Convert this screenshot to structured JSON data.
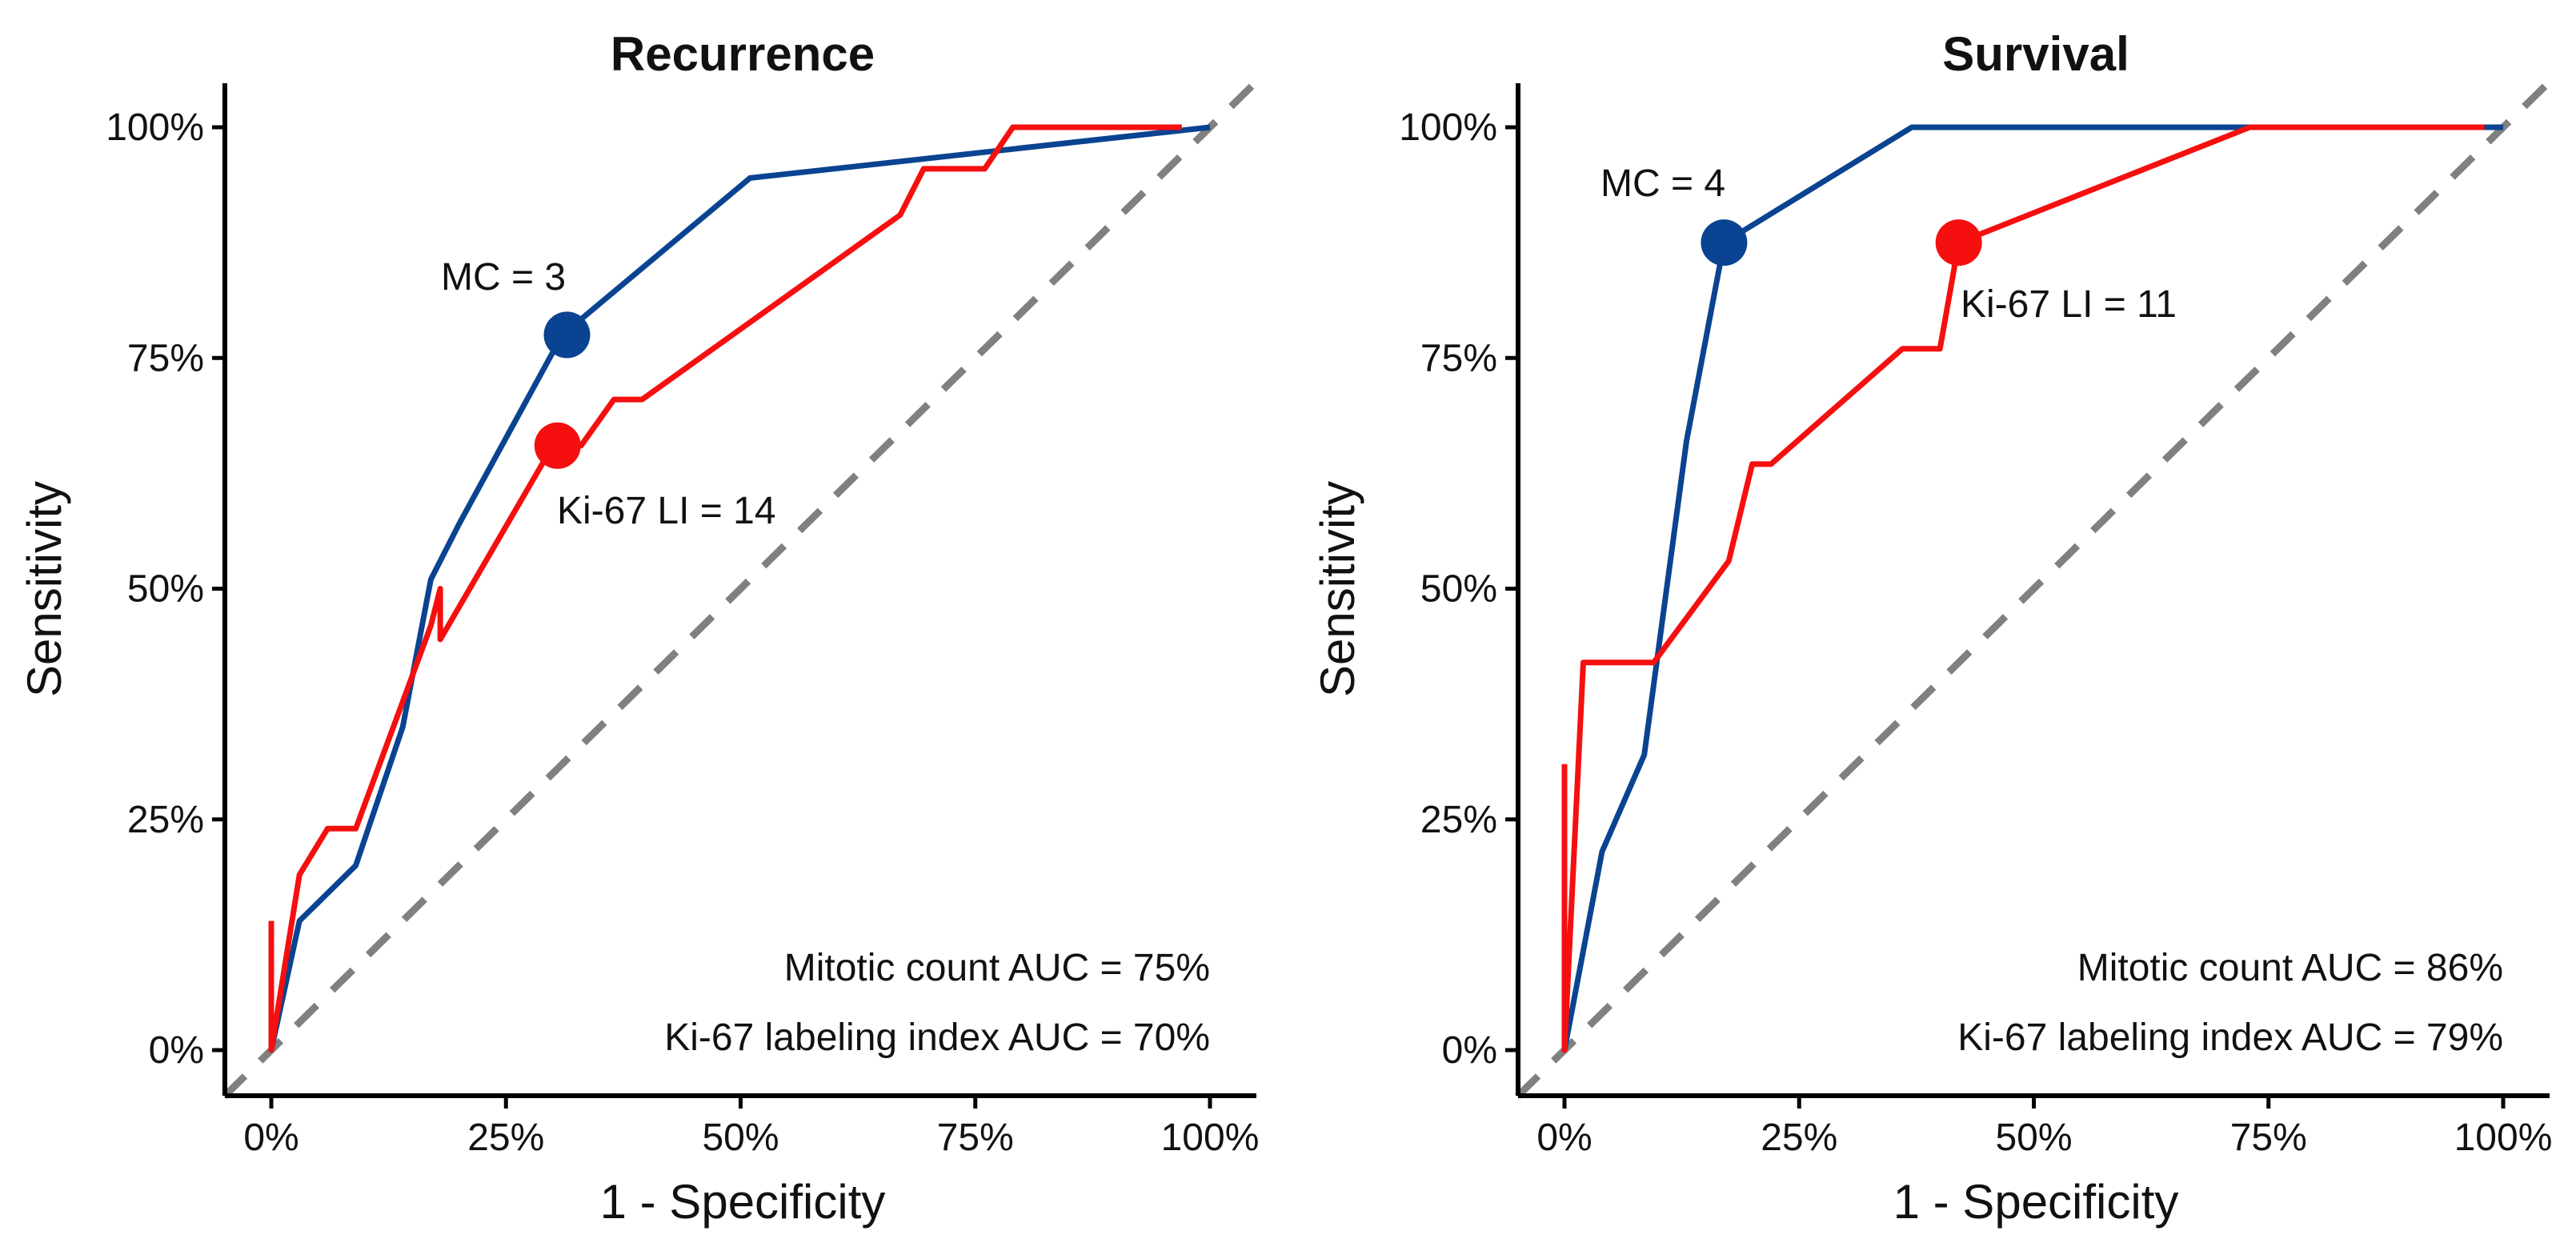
{
  "chart_data": [
    {
      "type": "line",
      "title": "Recurrence",
      "xlabel": "1 - Specificity",
      "ylabel": "Sensitivity",
      "xlim": [
        -0.05,
        1.05
      ],
      "ylim": [
        -0.05,
        1.05
      ],
      "x_ticks": [
        "0%",
        "25%",
        "50%",
        "75%",
        "100%"
      ],
      "y_ticks": [
        "0%",
        "25%",
        "50%",
        "75%",
        "100%"
      ],
      "diagonal_color": "#808080",
      "series": [
        {
          "name": "Mitotic count",
          "color": "#0a4391",
          "points": [
            [
              0,
              0
            ],
            [
              0.03,
              0.14
            ],
            [
              0.09,
              0.2
            ],
            [
              0.14,
              0.35
            ],
            [
              0.17,
              0.51
            ],
            [
              0.2,
              0.57
            ],
            [
              0.31,
              0.775
            ],
            [
              0.51,
              0.945
            ],
            [
              1.0,
              1.0
            ]
          ]
        },
        {
          "name": "Ki-67 labeling index",
          "color": "#f50f0f",
          "points": [
            [
              0,
              0.14
            ],
            [
              0,
              0
            ],
            [
              0.03,
              0.19
            ],
            [
              0.06,
              0.24
            ],
            [
              0.09,
              0.24
            ],
            [
              0.17,
              0.46
            ],
            [
              0.18,
              0.5
            ],
            [
              0.18,
              0.445
            ],
            [
              0.3,
              0.655
            ],
            [
              0.33,
              0.655
            ],
            [
              0.365,
              0.705
            ],
            [
              0.395,
              0.705
            ],
            [
              0.67,
              0.905
            ],
            [
              0.695,
              0.955
            ],
            [
              0.76,
              0.955
            ],
            [
              0.79,
              1.0
            ],
            [
              0.97,
              1.0
            ]
          ]
        }
      ],
      "cutpoints": [
        {
          "label": "MC = 3",
          "x": 0.315,
          "y": 0.775,
          "color": "#0a4391"
        },
        {
          "label": "Ki-67 LI = 14",
          "x": 0.305,
          "y": 0.655,
          "color": "#f50f0f"
        }
      ],
      "auc_lines": [
        "Mitotic count AUC = 75%",
        "Ki-67 labeling index AUC = 70%"
      ]
    },
    {
      "type": "line",
      "title": "Survival",
      "xlabel": "1 - Specificity",
      "ylabel": "Sensitivity",
      "xlim": [
        -0.05,
        1.05
      ],
      "ylim": [
        -0.05,
        1.05
      ],
      "x_ticks": [
        "0%",
        "25%",
        "50%",
        "75%",
        "100%"
      ],
      "y_ticks": [
        "0%",
        "25%",
        "50%",
        "75%",
        "100%"
      ],
      "diagonal_color": "#808080",
      "series": [
        {
          "name": "Mitotic count",
          "color": "#0a4391",
          "points": [
            [
              0,
              0
            ],
            [
              0.04,
              0.215
            ],
            [
              0.085,
              0.32
            ],
            [
              0.13,
              0.66
            ],
            [
              0.17,
              0.875
            ],
            [
              0.37,
              1.0
            ],
            [
              1.0,
              1.0
            ]
          ]
        },
        {
          "name": "Ki-67 labeling index",
          "color": "#f50f0f",
          "points": [
            [
              0,
              0.31
            ],
            [
              0,
              0
            ],
            [
              0.02,
              0.42
            ],
            [
              0.095,
              0.42
            ],
            [
              0.175,
              0.53
            ],
            [
              0.2,
              0.635
            ],
            [
              0.22,
              0.635
            ],
            [
              0.36,
              0.76
            ],
            [
              0.4,
              0.76
            ],
            [
              0.42,
              0.875
            ],
            [
              0.73,
              1.0
            ],
            [
              0.98,
              1.0
            ]
          ]
        }
      ],
      "cutpoints": [
        {
          "label": "MC = 4",
          "x": 0.17,
          "y": 0.875,
          "color": "#0a4391"
        },
        {
          "label": "Ki-67 LI = 11",
          "x": 0.42,
          "y": 0.875,
          "color": "#f50f0f"
        }
      ],
      "auc_lines": [
        "Mitotic count AUC = 86%",
        "Ki-67 labeling index AUC = 79%"
      ]
    }
  ]
}
